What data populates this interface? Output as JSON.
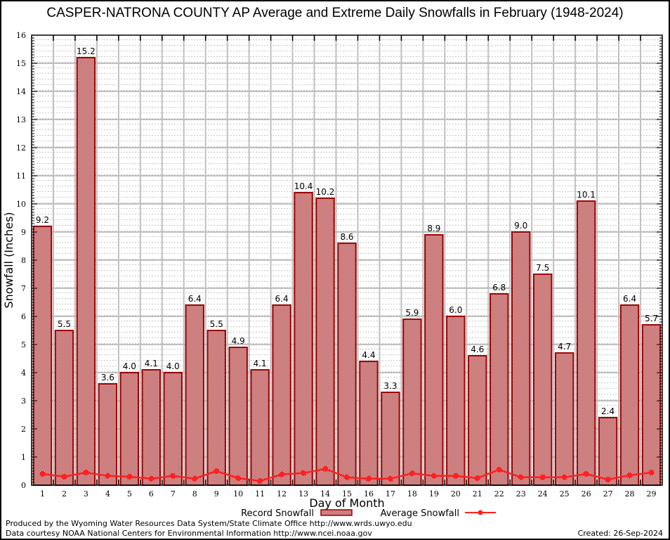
{
  "chart_data": {
    "type": "bar",
    "title": "CASPER-NATRONA COUNTY AP Average and Extreme Daily Snowfalls in February (1948-2024)",
    "xlabel": "Day of Month",
    "ylabel": "Snowfall (Inches)",
    "ylim": [
      0,
      16
    ],
    "yticks": [
      0,
      1,
      2,
      3,
      4,
      5,
      6,
      7,
      8,
      9,
      10,
      11,
      12,
      13,
      14,
      15,
      16
    ],
    "grid": true,
    "legend_position": "bottom-center",
    "categories": [
      "1",
      "2",
      "3",
      "4",
      "5",
      "6",
      "7",
      "8",
      "9",
      "10",
      "11",
      "12",
      "13",
      "14",
      "15",
      "16",
      "17",
      "18",
      "19",
      "20",
      "21",
      "22",
      "23",
      "24",
      "25",
      "26",
      "27",
      "28",
      "29"
    ],
    "series": [
      {
        "name": "Record Snowfall",
        "type": "bar",
        "color": "#9b0000",
        "values": [
          9.2,
          5.5,
          15.2,
          3.6,
          4.0,
          4.1,
          4.0,
          6.4,
          5.5,
          4.9,
          4.1,
          6.4,
          10.4,
          10.2,
          8.6,
          4.4,
          3.3,
          5.9,
          8.9,
          6.0,
          4.6,
          6.8,
          9.0,
          7.5,
          4.7,
          10.1,
          2.4,
          6.4,
          5.7
        ],
        "labels": [
          "9.2",
          "5.5",
          "15.2",
          "3.6",
          "4.0",
          "4.1",
          "4.0",
          "6.4",
          "5.5",
          "4.9",
          "4.1",
          "6.4",
          "10.4",
          "10.2",
          "8.6",
          "4.4",
          "3.3",
          "5.9",
          "8.9",
          "6.0",
          "4.6",
          "6.8",
          "9.0",
          "7.5",
          "4.7",
          "10.1",
          "2.4",
          "6.4",
          "5.7"
        ]
      },
      {
        "name": "Average Snowfall",
        "type": "line",
        "color": "#ff2020",
        "values": [
          0.4,
          0.3,
          0.45,
          0.33,
          0.3,
          0.23,
          0.33,
          0.23,
          0.5,
          0.25,
          0.15,
          0.38,
          0.43,
          0.58,
          0.28,
          0.23,
          0.23,
          0.42,
          0.33,
          0.33,
          0.25,
          0.55,
          0.28,
          0.28,
          0.28,
          0.4,
          0.2,
          0.35,
          0.45
        ]
      }
    ]
  },
  "footer": {
    "produced_by": "Produced by the Wyoming Water Resources Data System/State Climate Office http://www.wrds.uwyo.edu",
    "data_courtesy": "Data courtesy NOAA National Centers for Environmental Information http://www.ncei.noaa.gov",
    "created": "Created: 26-Sep-2024"
  }
}
